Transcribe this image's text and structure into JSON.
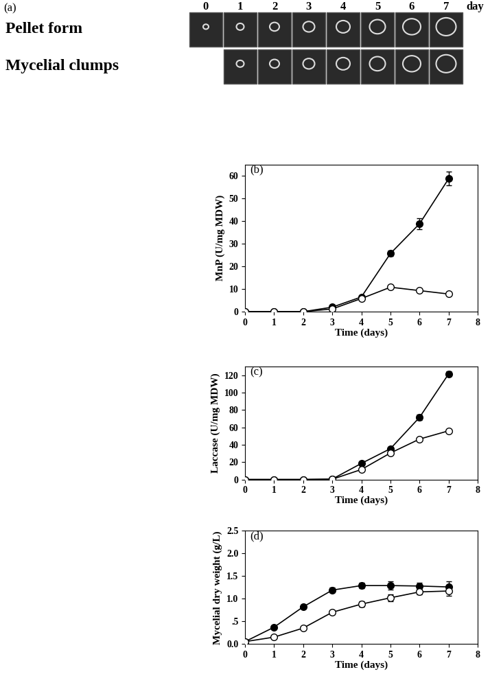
{
  "panel_a": {
    "label": "(a)",
    "days": [
      0,
      1,
      2,
      3,
      4,
      5,
      6,
      7
    ],
    "day_unit": "day",
    "rows": [
      {
        "label": "Pellet form",
        "days": [
          0,
          1,
          2,
          3,
          4,
          5,
          6,
          7
        ]
      },
      {
        "label": "Mycelial clumps",
        "days": [
          1,
          2,
          3,
          4,
          5,
          6,
          7
        ]
      }
    ]
  },
  "chart_data": [
    {
      "type": "line",
      "title": "(b)",
      "x_label": "Time (days)",
      "y_label": "MnP (U/mg MDW)",
      "x": [
        0,
        1,
        2,
        3,
        4,
        5,
        6,
        7
      ],
      "xlim": [
        0,
        8
      ],
      "xticks": [
        0,
        1,
        2,
        3,
        4,
        5,
        6,
        7,
        8
      ],
      "ylim": [
        0,
        65
      ],
      "yticks": [
        0,
        10,
        20,
        30,
        40,
        50,
        60
      ],
      "series": [
        {
          "color": "#000000",
          "marker": "o",
          "values": [
            0,
            0,
            0,
            2.0,
            6.5,
            25.7,
            38.8,
            58.7
          ],
          "errors": [
            0,
            0,
            0,
            0.3,
            0.5,
            1.2,
            2.5,
            3.0
          ]
        },
        {
          "color": "#ffffff",
          "marker": "o",
          "values": [
            0,
            0,
            0,
            1.2,
            5.8,
            10.8,
            9.3,
            7.8
          ],
          "errors": [
            0,
            0,
            0,
            0.3,
            0.5,
            0.6,
            0.5,
            0.5
          ]
        }
      ]
    },
    {
      "type": "line",
      "title": "(c)",
      "x_label": "Time (days)",
      "y_label": "Laccase (U/mg MDW)",
      "x": [
        0,
        1,
        2,
        3,
        4,
        5,
        6,
        7
      ],
      "xlim": [
        0,
        8
      ],
      "xticks": [
        0,
        1,
        2,
        3,
        4,
        5,
        6,
        7,
        8
      ],
      "ylim": [
        0,
        130
      ],
      "yticks": [
        0,
        20,
        40,
        60,
        80,
        100,
        120
      ],
      "series": [
        {
          "color": "#000000",
          "marker": "o",
          "values": [
            0,
            0,
            0,
            0.5,
            18.5,
            35.5,
            71.5,
            121.5
          ],
          "errors": [
            0,
            0,
            0,
            0.3,
            1.0,
            1.5,
            3.5,
            3.0
          ]
        },
        {
          "color": "#ffffff",
          "marker": "o",
          "values": [
            0,
            0,
            0,
            0.3,
            11.5,
            30.5,
            46.5,
            56.0
          ],
          "errors": [
            0,
            0,
            0,
            0.2,
            0.5,
            0.8,
            0.8,
            0.8
          ]
        }
      ]
    },
    {
      "type": "line",
      "title": "(d)",
      "x_label": "Time (days)",
      "y_label": "Mycelial dry weight (g/L)",
      "x": [
        0,
        1,
        2,
        3,
        4,
        5,
        6,
        7
      ],
      "xlim": [
        0,
        8
      ],
      "xticks": [
        0,
        1,
        2,
        3,
        4,
        5,
        6,
        7,
        8
      ],
      "ylim": [
        0,
        2.5
      ],
      "yticks": [
        {
          "value": 0,
          "label": "0.0"
        },
        {
          "value": 0.5,
          "label": ".5"
        },
        {
          "value": 1.0,
          "label": "1.0"
        },
        {
          "value": 1.5,
          "label": "1.5"
        },
        {
          "value": 2.0,
          "label": "2.0"
        },
        {
          "value": 2.5,
          "label": "2.5"
        }
      ],
      "series": [
        {
          "color": "#000000",
          "marker": "o",
          "values": [
            0.05,
            0.37,
            0.82,
            1.19,
            1.29,
            1.29,
            1.28,
            1.26
          ],
          "errors": [
            0.02,
            0.03,
            0.03,
            0.05,
            0.06,
            0.09,
            0.08,
            0.12
          ]
        },
        {
          "color": "#ffffff",
          "marker": "o",
          "values": [
            0.05,
            0.15,
            0.35,
            0.7,
            0.88,
            1.02,
            1.15,
            1.17
          ],
          "errors": [
            0.01,
            0.02,
            0.03,
            0.04,
            0.06,
            0.08,
            0.06,
            0.1
          ]
        }
      ]
    }
  ]
}
